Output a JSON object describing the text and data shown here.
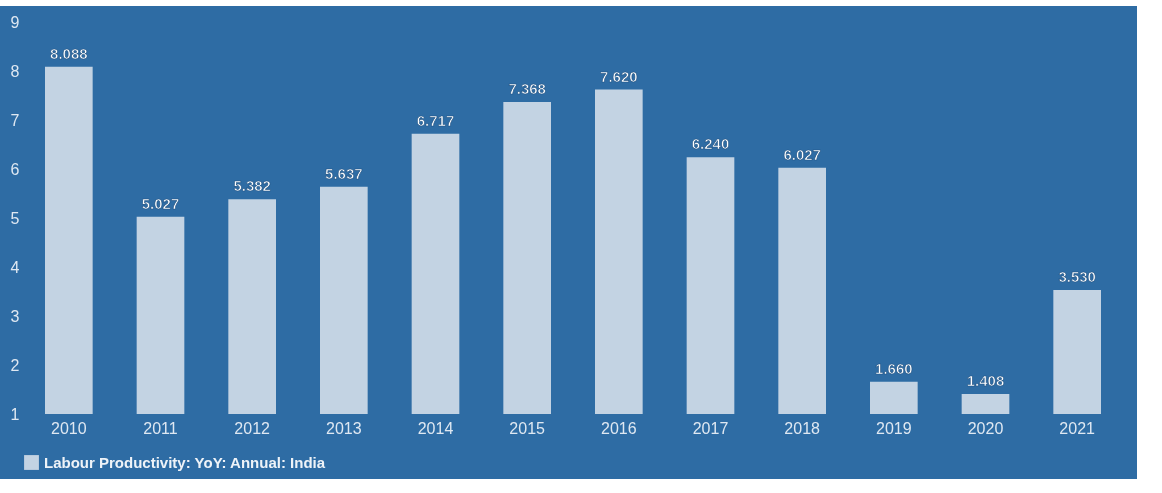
{
  "chart_data": {
    "type": "bar",
    "categories": [
      "2010",
      "2011",
      "2012",
      "2013",
      "2014",
      "2015",
      "2016",
      "2017",
      "2018",
      "2019",
      "2020",
      "2021"
    ],
    "series": [
      {
        "name": "Labour Productivity: YoY: Annual: India",
        "color": "#c3d3e3",
        "values": [
          8.088,
          5.027,
          5.382,
          5.637,
          6.717,
          7.368,
          7.62,
          6.24,
          6.027,
          1.66,
          1.408,
          3.53
        ],
        "value_labels": [
          "8.088",
          "5.027",
          "5.382",
          "5.637",
          "6.717",
          "7.368",
          "7.620",
          "6.240",
          "6.027",
          "1.660",
          "1.408",
          "3.530"
        ]
      }
    ],
    "ylim": [
      1,
      9
    ],
    "yticks": [
      1,
      2,
      3,
      4,
      5,
      6,
      7,
      8,
      9
    ],
    "legend": "bottom"
  }
}
